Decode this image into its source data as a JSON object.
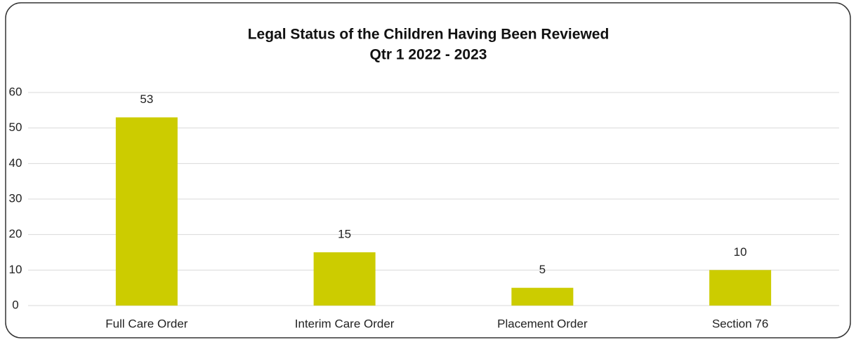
{
  "chart_data": {
    "type": "bar",
    "title": "Legal Status of the Children Having Been Reviewed",
    "subtitle": "Qtr 1 2022 - 2023",
    "categories": [
      "Full Care Order",
      "Interim Care Order",
      "Placement Order",
      "Section 76"
    ],
    "values": [
      53,
      15,
      5,
      10
    ],
    "color": "#cccc00",
    "ylim": [
      0,
      60
    ],
    "yticks": [
      0,
      10,
      20,
      30,
      40,
      50,
      60
    ],
    "grid": true
  }
}
